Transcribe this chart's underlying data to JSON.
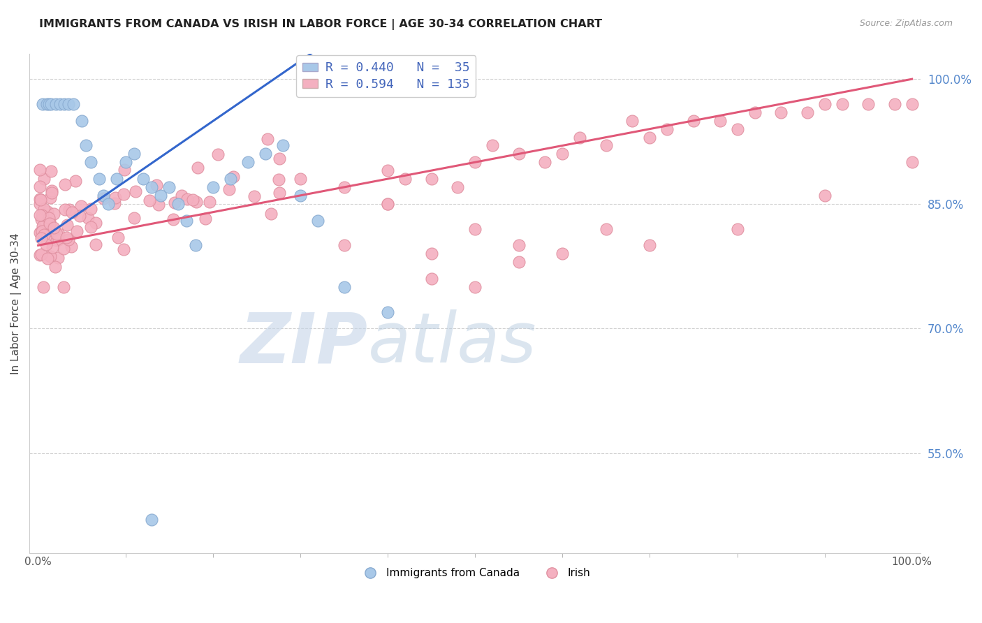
{
  "title": "IMMIGRANTS FROM CANADA VS IRISH IN LABOR FORCE | AGE 30-34 CORRELATION CHART",
  "source": "Source: ZipAtlas.com",
  "ylabel": "In Labor Force | Age 30-34",
  "yticks": [
    55,
    70,
    85,
    100
  ],
  "ytick_labels": [
    "55.0%",
    "70.0%",
    "85.0%",
    "100.0%"
  ],
  "watermark_zip": "ZIP",
  "watermark_atlas": "atlas",
  "canada_color": "#a8c8e8",
  "irish_color": "#f4b0c0",
  "canada_edge": "#88aad0",
  "irish_edge": "#e090a0",
  "trend_canada_color": "#3366cc",
  "trend_irish_color": "#e05878",
  "canada_R": 0.44,
  "canada_N": 35,
  "irish_R": 0.594,
  "irish_N": 135,
  "legend_color": "#4466bb",
  "ytick_color": "#5588cc",
  "xtick_color": "#555555",
  "ylim_min": 43,
  "ylim_max": 103,
  "xlim_min": -1,
  "xlim_max": 101,
  "canada_trend_x0": 0,
  "canada_trend_y0": 80.5,
  "canada_trend_x1": 27,
  "canada_trend_y1": 100,
  "irish_trend_x0": 0,
  "irish_trend_y0": 80.0,
  "irish_trend_x1": 100,
  "irish_trend_y1": 100
}
